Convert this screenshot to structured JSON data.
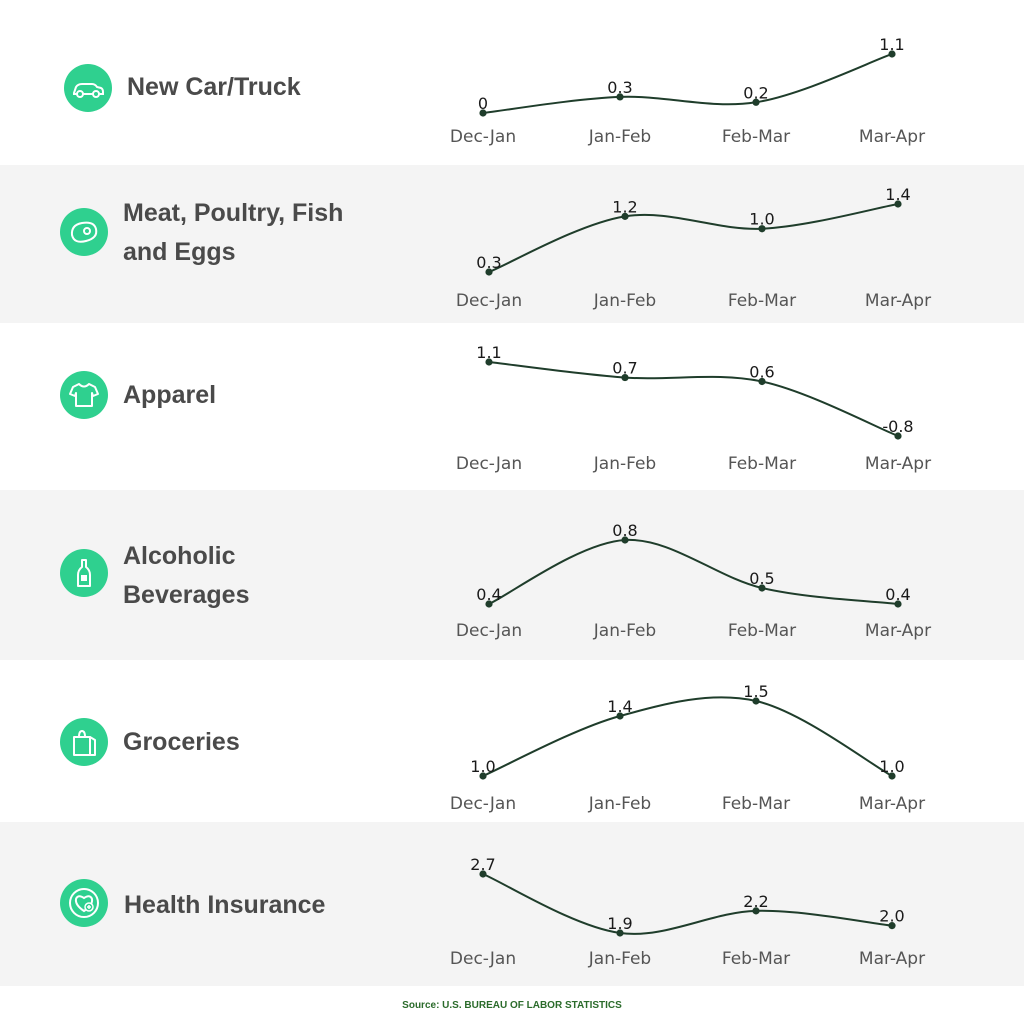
{
  "chart_data": [
    {
      "type": "line",
      "title": "New Car/Truck",
      "icon": "car-icon",
      "categories": [
        "Dec-Jan",
        "Jan-Feb",
        "Feb-Mar",
        "Mar-Apr"
      ],
      "values": [
        0,
        0.3,
        0.2,
        1.1
      ],
      "value_labels": [
        "0",
        "0.3",
        "0.2",
        "1.1"
      ]
    },
    {
      "type": "line",
      "title": "Meat, Poultry, Fish and Eggs",
      "icon": "steak-icon",
      "categories": [
        "Dec-Jan",
        "Jan-Feb",
        "Feb-Mar",
        "Mar-Apr"
      ],
      "values": [
        0.3,
        1.2,
        1.0,
        1.4
      ],
      "value_labels": [
        "0.3",
        "1.2",
        "1.0",
        "1.4"
      ]
    },
    {
      "type": "line",
      "title": "Apparel",
      "icon": "tshirt-icon",
      "categories": [
        "Dec-Jan",
        "Jan-Feb",
        "Feb-Mar",
        "Mar-Apr"
      ],
      "values": [
        1.1,
        0.7,
        0.6,
        -0.8
      ],
      "value_labels": [
        "1.1",
        "0.7",
        "0.6",
        "-0.8"
      ]
    },
    {
      "type": "line",
      "title": "Alcoholic Beverages",
      "icon": "bottle-icon",
      "categories": [
        "Dec-Jan",
        "Jan-Feb",
        "Feb-Mar",
        "Mar-Apr"
      ],
      "values": [
        0.4,
        0.8,
        0.5,
        0.4
      ],
      "value_labels": [
        "0.4",
        "0.8",
        "0.5",
        "0.4"
      ]
    },
    {
      "type": "line",
      "title": "Groceries",
      "icon": "grocery-bag-icon",
      "categories": [
        "Dec-Jan",
        "Jan-Feb",
        "Feb-Mar",
        "Mar-Apr"
      ],
      "values": [
        1.0,
        1.4,
        1.5,
        1.0
      ],
      "value_labels": [
        "1.0",
        "1.4",
        "1.5",
        "1.0"
      ]
    },
    {
      "type": "line",
      "title": "Health Insurance",
      "icon": "health-heart-icon",
      "categories": [
        "Dec-Jan",
        "Jan-Feb",
        "Feb-Mar",
        "Mar-Apr"
      ],
      "values": [
        2.7,
        1.9,
        2.2,
        2.0
      ],
      "value_labels": [
        "2.7",
        "1.9",
        "2.2",
        "2.0"
      ]
    }
  ],
  "source": "Source: U.S. BUREAU OF LABOR STATISTICS",
  "colors": {
    "badge": "#2fd08f",
    "line": "#1f3d2b",
    "label": "#4a4a4a",
    "band": "#f4f4f4",
    "source": "#2b6b2b"
  }
}
